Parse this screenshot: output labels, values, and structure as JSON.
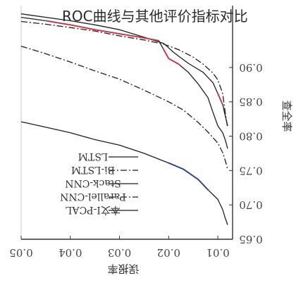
{
  "overlay_title": "ROC曲线与其他评价指标对比",
  "chart_data": {
    "type": "line",
    "title": "",
    "xlabel": "误报率",
    "ylabel": "查全率",
    "xlim": [
      0.05,
      0.007
    ],
    "ylim": [
      0.65,
      0.99
    ],
    "x_ticks": [
      0.05,
      0.04,
      0.03,
      0.02,
      0.01
    ],
    "x_tick_labels": [
      "0.05",
      "0.04",
      "0.03",
      "0.02",
      "0.01"
    ],
    "y_ticks": [
      0.65,
      0.7,
      0.75,
      0.8,
      0.85,
      0.9
    ],
    "y_tick_labels": [
      "0.65",
      "0.70",
      "0.75",
      "0.80",
      "0.85",
      "0.90"
    ],
    "mirrored": true,
    "grid": false,
    "legend": {
      "position": "bottom-left",
      "entries": [
        "LSTM",
        "Bi-LSTM",
        "Stack-CNN",
        "Parallel-CNN",
        "本文I-PCAL"
      ]
    },
    "series": [
      {
        "name": "LSTM",
        "style": "solid",
        "x": [
          0.05,
          0.045,
          0.04,
          0.035,
          0.03,
          0.025,
          0.02,
          0.017,
          0.014,
          0.012,
          0.01,
          0.009,
          0.0085,
          0.008
        ],
        "y": [
          0.821,
          0.813,
          0.805,
          0.795,
          0.787,
          0.775,
          0.761,
          0.752,
          0.737,
          0.722,
          0.708,
          0.693,
          0.681,
          0.671
        ]
      },
      {
        "name": "Bi-LSTM",
        "style": "dashdot",
        "x": [
          0.05,
          0.045,
          0.04,
          0.035,
          0.03,
          0.025,
          0.02,
          0.017,
          0.014,
          0.012,
          0.01,
          0.009,
          0.0085,
          0.008
        ],
        "y": [
          0.931,
          0.92,
          0.908,
          0.895,
          0.883,
          0.867,
          0.85,
          0.838,
          0.82,
          0.806,
          0.79,
          0.776,
          0.765,
          0.752
        ]
      },
      {
        "name": "Stack-CNN",
        "style": "solid",
        "x": [
          0.05,
          0.04,
          0.035,
          0.03,
          0.025,
          0.021,
          0.019,
          0.016,
          0.013,
          0.011,
          0.01,
          0.009,
          0.0085,
          0.008
        ],
        "y": [
          0.978,
          0.968,
          0.962,
          0.955,
          0.944,
          0.935,
          0.922,
          0.906,
          0.893,
          0.878,
          0.862,
          0.846,
          0.83,
          0.815
        ]
      },
      {
        "name": "Parallel-CNN",
        "style": "dashdot",
        "x": [
          0.05,
          0.045,
          0.04,
          0.035,
          0.03,
          0.025,
          0.021,
          0.018,
          0.015,
          0.013,
          0.011,
          0.01,
          0.009,
          0.0085,
          0.008
        ],
        "y": [
          0.967,
          0.963,
          0.958,
          0.953,
          0.946,
          0.94,
          0.934,
          0.926,
          0.915,
          0.905,
          0.892,
          0.882,
          0.862,
          0.835,
          0.812
        ]
      },
      {
        "name": "本文I-PCAL",
        "style": "solid",
        "x": [
          0.05,
          0.045,
          0.04,
          0.035,
          0.03,
          0.025,
          0.022,
          0.021,
          0.02,
          0.018,
          0.016,
          0.014,
          0.012,
          0.011,
          0.01,
          0.009,
          0.0085,
          0.008
        ],
        "y": [
          0.973,
          0.968,
          0.962,
          0.955,
          0.949,
          0.943,
          0.939,
          0.926,
          0.913,
          0.905,
          0.893,
          0.876,
          0.856,
          0.835,
          0.815,
          0.805,
          0.795,
          0.782
        ]
      }
    ]
  },
  "colors": {
    "background": "#ffffff",
    "axis": "#333333",
    "line": "#1f1f1f",
    "highlight_red": "#e0304a",
    "highlight_blue": "#2a3f9e",
    "title": "#2a2a2a"
  }
}
